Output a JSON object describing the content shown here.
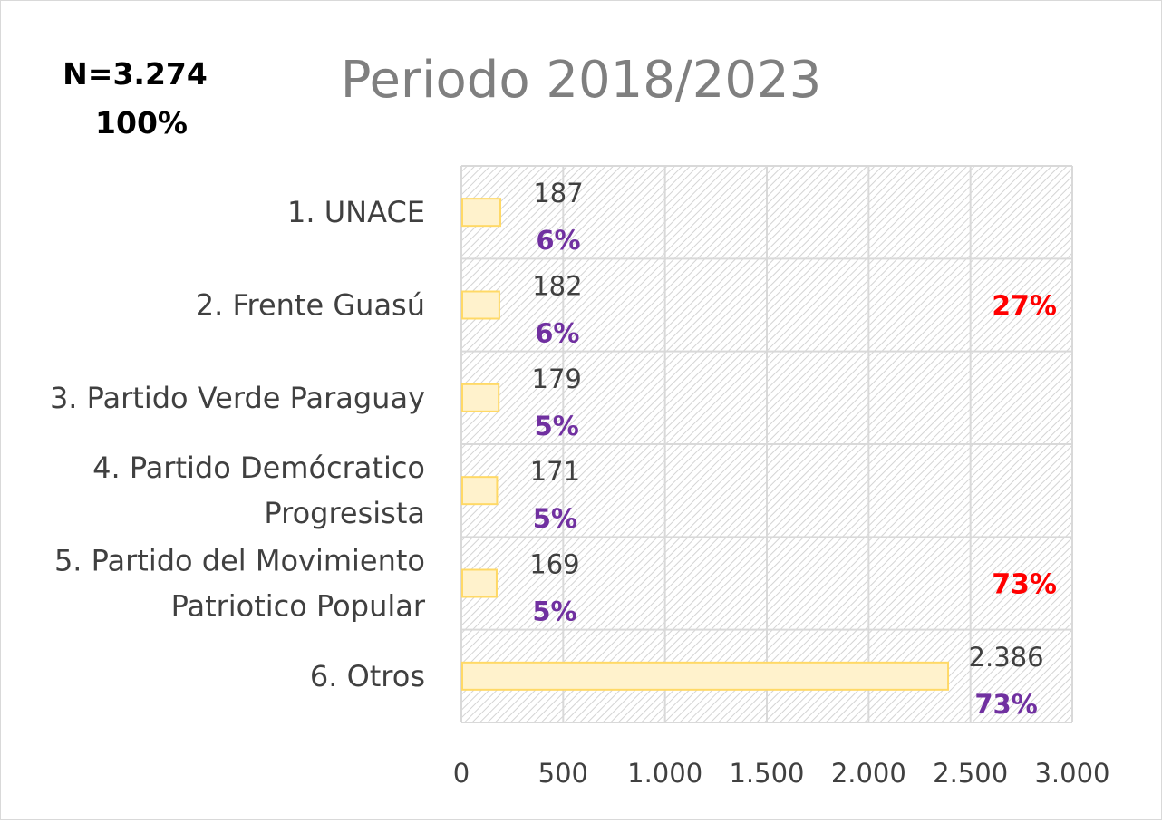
{
  "header": {
    "n_label": "N=3.274",
    "total_pct": "100%"
  },
  "chart_data": {
    "type": "bar",
    "orientation": "horizontal",
    "title": "Periodo 2018/2023",
    "categories": [
      [
        "1. UNACE"
      ],
      [
        "2. Frente Guasú"
      ],
      [
        "3. Partido Verde Paraguay"
      ],
      [
        "4. Partido Demócratico",
        "Progresista"
      ],
      [
        "5. Partido del Movimiento",
        "Patriotico Popular"
      ],
      [
        "6. Otros"
      ]
    ],
    "values": [
      187,
      182,
      179,
      171,
      169,
      2386
    ],
    "value_labels": [
      "187",
      "182",
      "179",
      "171",
      "169",
      "2.386"
    ],
    "percent_labels": [
      "6%",
      "6%",
      "5%",
      "5%",
      "5%",
      "73%"
    ],
    "xlim": [
      0,
      3000
    ],
    "xticks": [
      0,
      500,
      1000,
      1500,
      2000,
      2500,
      3000
    ],
    "xtick_labels": [
      "0",
      "500",
      "1.000",
      "1.500",
      "2.000",
      "2.500",
      "3.000"
    ],
    "grid": true,
    "annotations": [
      {
        "text": "27%",
        "row": 1
      },
      {
        "text": "73%",
        "row": 4
      }
    ],
    "colors": {
      "bar_fill": "#fff2cc",
      "bar_stroke": "#ffd966",
      "percent_text": "#7030a0",
      "annotation_text": "#ff0000",
      "title_text": "#7f7f7f",
      "label_text": "#404040",
      "grid": "#d9d9d9"
    }
  }
}
